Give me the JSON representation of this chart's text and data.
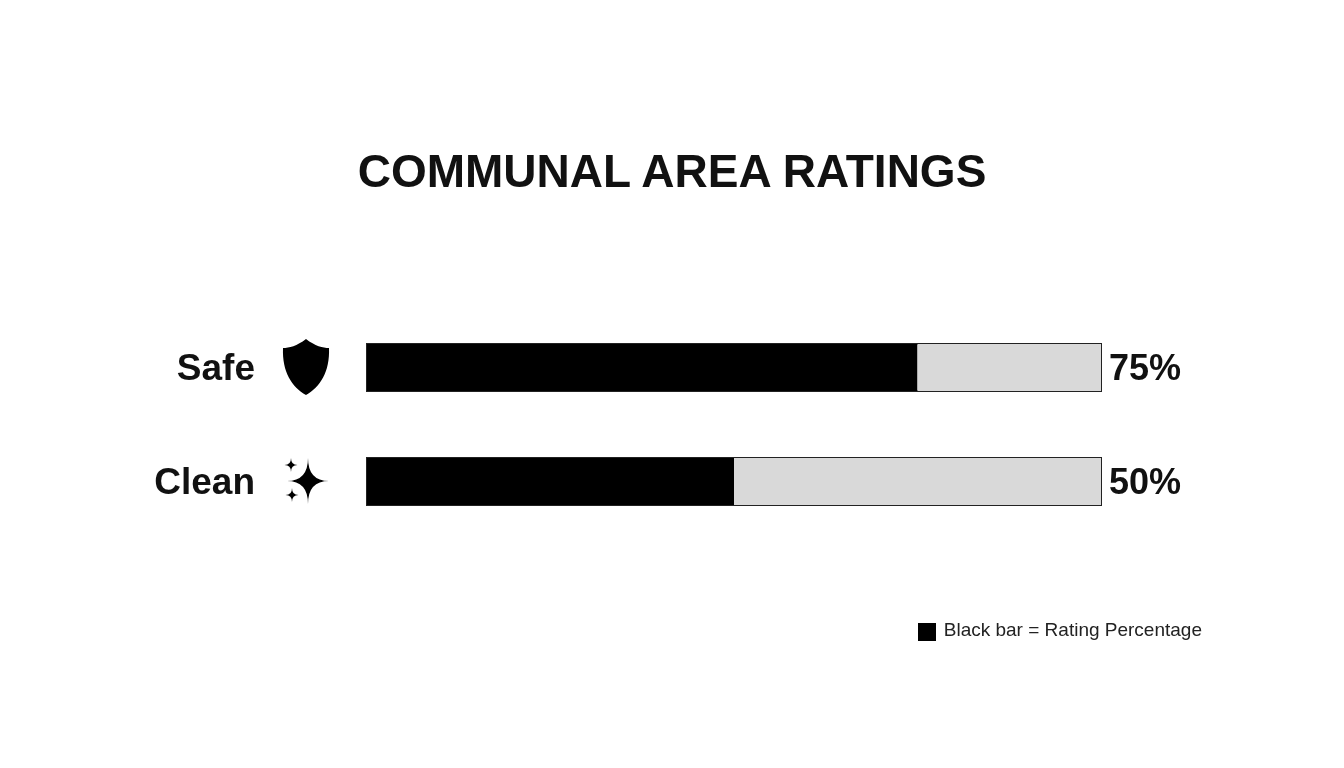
{
  "chart_data": {
    "type": "bar",
    "title": "COMMUNAL AREA RATINGS",
    "orientation": "horizontal",
    "stacked": true,
    "categories": [
      "Safe",
      "Clean"
    ],
    "series": [
      {
        "name": "Black bar = Rating Percentage",
        "color": "#000000",
        "values": [
          75,
          50
        ],
        "value_labels": [
          "75%",
          "50%"
        ]
      },
      {
        "color": "#d9d9d9",
        "values": [
          25,
          50
        ]
      }
    ],
    "xlim": [
      0,
      100
    ],
    "legend": "bottom right",
    "tick_labels": "y"
  }
}
